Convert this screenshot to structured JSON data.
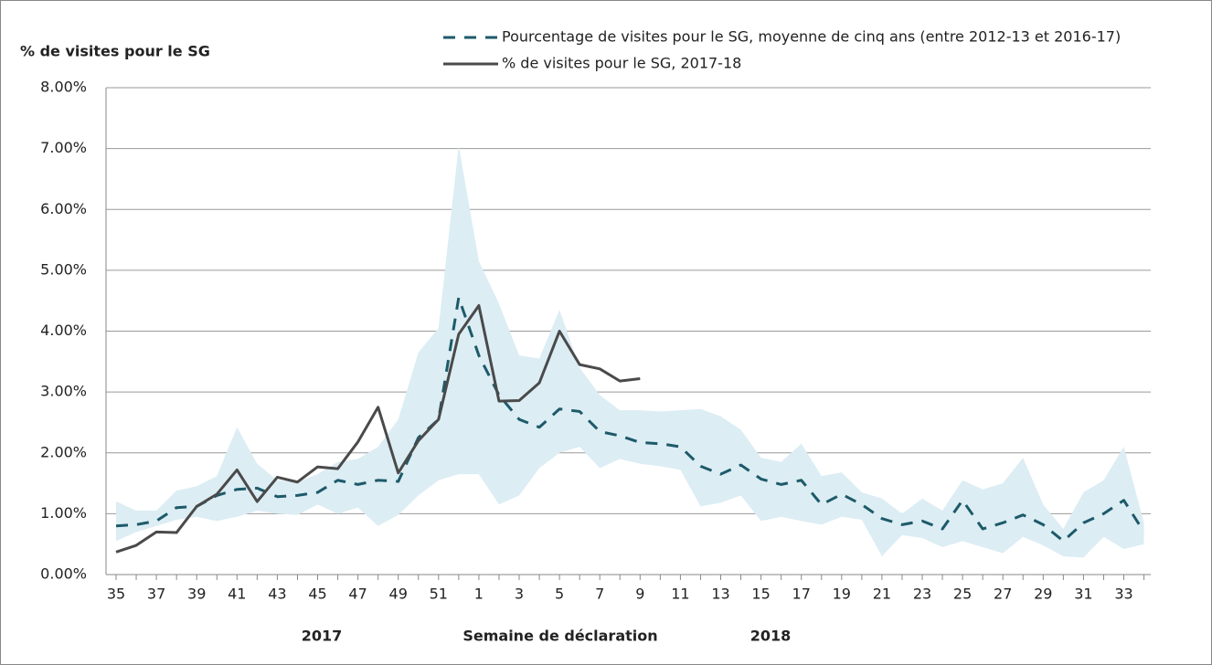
{
  "chart_data": {
    "type": "line",
    "y_label": "% de visites pour le SG",
    "x_label": "Semaine de déclaration",
    "annotations": [
      "2017",
      "2018"
    ],
    "categories": [
      "35",
      null,
      "37",
      null,
      "39",
      null,
      "41",
      null,
      "43",
      null,
      "45",
      null,
      "47",
      null,
      "49",
      null,
      "51",
      null,
      "1",
      null,
      "3",
      null,
      "5",
      null,
      "7",
      null,
      "9",
      null,
      "11",
      null,
      "13",
      null,
      "15",
      null,
      "17",
      null,
      "19",
      null,
      "21",
      null,
      "23",
      null,
      "25",
      null,
      "27",
      null,
      "29",
      null,
      "31",
      null,
      "33",
      null
    ],
    "series": [
      {
        "name": "Pourcentage de visites pour le SG, moyenne de cinq ans (entre 2012-13 et 2016-17)",
        "color": "#1d5a69",
        "dashed": true,
        "values": [
          0.8,
          0.82,
          0.88,
          1.1,
          1.12,
          1.3,
          1.4,
          1.42,
          1.28,
          1.3,
          1.35,
          1.55,
          1.48,
          1.55,
          1.53,
          2.25,
          2.55,
          4.55,
          3.6,
          2.95,
          2.55,
          2.42,
          2.72,
          2.68,
          2.35,
          2.28,
          2.17,
          2.15,
          2.1,
          1.78,
          1.65,
          1.8,
          1.57,
          1.48,
          1.55,
          1.15,
          1.32,
          1.15,
          0.92,
          0.82,
          0.88,
          0.75,
          1.22,
          0.75,
          0.85,
          0.98,
          0.82,
          0.55,
          0.85,
          1.0,
          1.22,
          0.7
        ]
      },
      {
        "name": "% de visites pour le SG, 2017-18",
        "color": "#4a4a4a",
        "dashed": false,
        "values": [
          0.37,
          0.48,
          0.7,
          0.69,
          1.12,
          1.32,
          1.72,
          1.2,
          1.6,
          1.52,
          1.77,
          1.74,
          2.18,
          2.75,
          1.67,
          2.2,
          2.55,
          3.95,
          4.42,
          2.85,
          2.86,
          3.15,
          4.0,
          3.45,
          3.38,
          3.18,
          3.22,
          null,
          null,
          null,
          null,
          null,
          null,
          null,
          null,
          null,
          null,
          null,
          null,
          null,
          null,
          null,
          null,
          null,
          null,
          null,
          null,
          null,
          null,
          null,
          null,
          null
        ]
      }
    ],
    "band": {
      "color": "#dcedf4",
      "upper": [
        1.2,
        1.05,
        1.05,
        1.38,
        1.45,
        1.62,
        2.42,
        1.82,
        1.55,
        1.52,
        1.65,
        1.85,
        1.9,
        2.1,
        2.55,
        3.65,
        4.05,
        7.05,
        5.15,
        4.45,
        3.6,
        3.55,
        4.35,
        3.4,
        2.95,
        2.7,
        2.7,
        2.68,
        2.7,
        2.72,
        2.6,
        2.38,
        1.92,
        1.85,
        2.15,
        1.62,
        1.68,
        1.35,
        1.25,
        1.0,
        1.25,
        1.05,
        1.55,
        1.4,
        1.5,
        1.92,
        1.15,
        0.75,
        1.35,
        1.55,
        2.1,
        0.85
      ],
      "lower": [
        0.55,
        0.7,
        0.8,
        0.9,
        0.95,
        0.88,
        0.95,
        1.05,
        1.0,
        0.98,
        1.15,
        1.0,
        1.1,
        0.8,
        0.98,
        1.3,
        1.55,
        1.65,
        1.65,
        1.15,
        1.3,
        1.75,
        2.0,
        2.1,
        1.75,
        1.9,
        1.82,
        1.78,
        1.72,
        1.12,
        1.18,
        1.3,
        0.88,
        0.95,
        0.88,
        0.82,
        0.95,
        0.9,
        0.3,
        0.65,
        0.6,
        0.45,
        0.55,
        0.45,
        0.35,
        0.62,
        0.48,
        0.3,
        0.28,
        0.62,
        0.42,
        0.5
      ]
    },
    "ylim": [
      0,
      8
    ],
    "yticks": [
      {
        "value": 0,
        "label": "0.00%"
      },
      {
        "value": 1,
        "label": "1.00%"
      },
      {
        "value": 2,
        "label": "2.00%"
      },
      {
        "value": 3,
        "label": "3.00%"
      },
      {
        "value": 4,
        "label": "4.00%"
      },
      {
        "value": 5,
        "label": "5.00%"
      },
      {
        "value": 6,
        "label": "6.00%"
      },
      {
        "value": 7,
        "label": "7.00%"
      },
      {
        "value": 8,
        "label": "8.00%"
      }
    ],
    "grid": true
  }
}
